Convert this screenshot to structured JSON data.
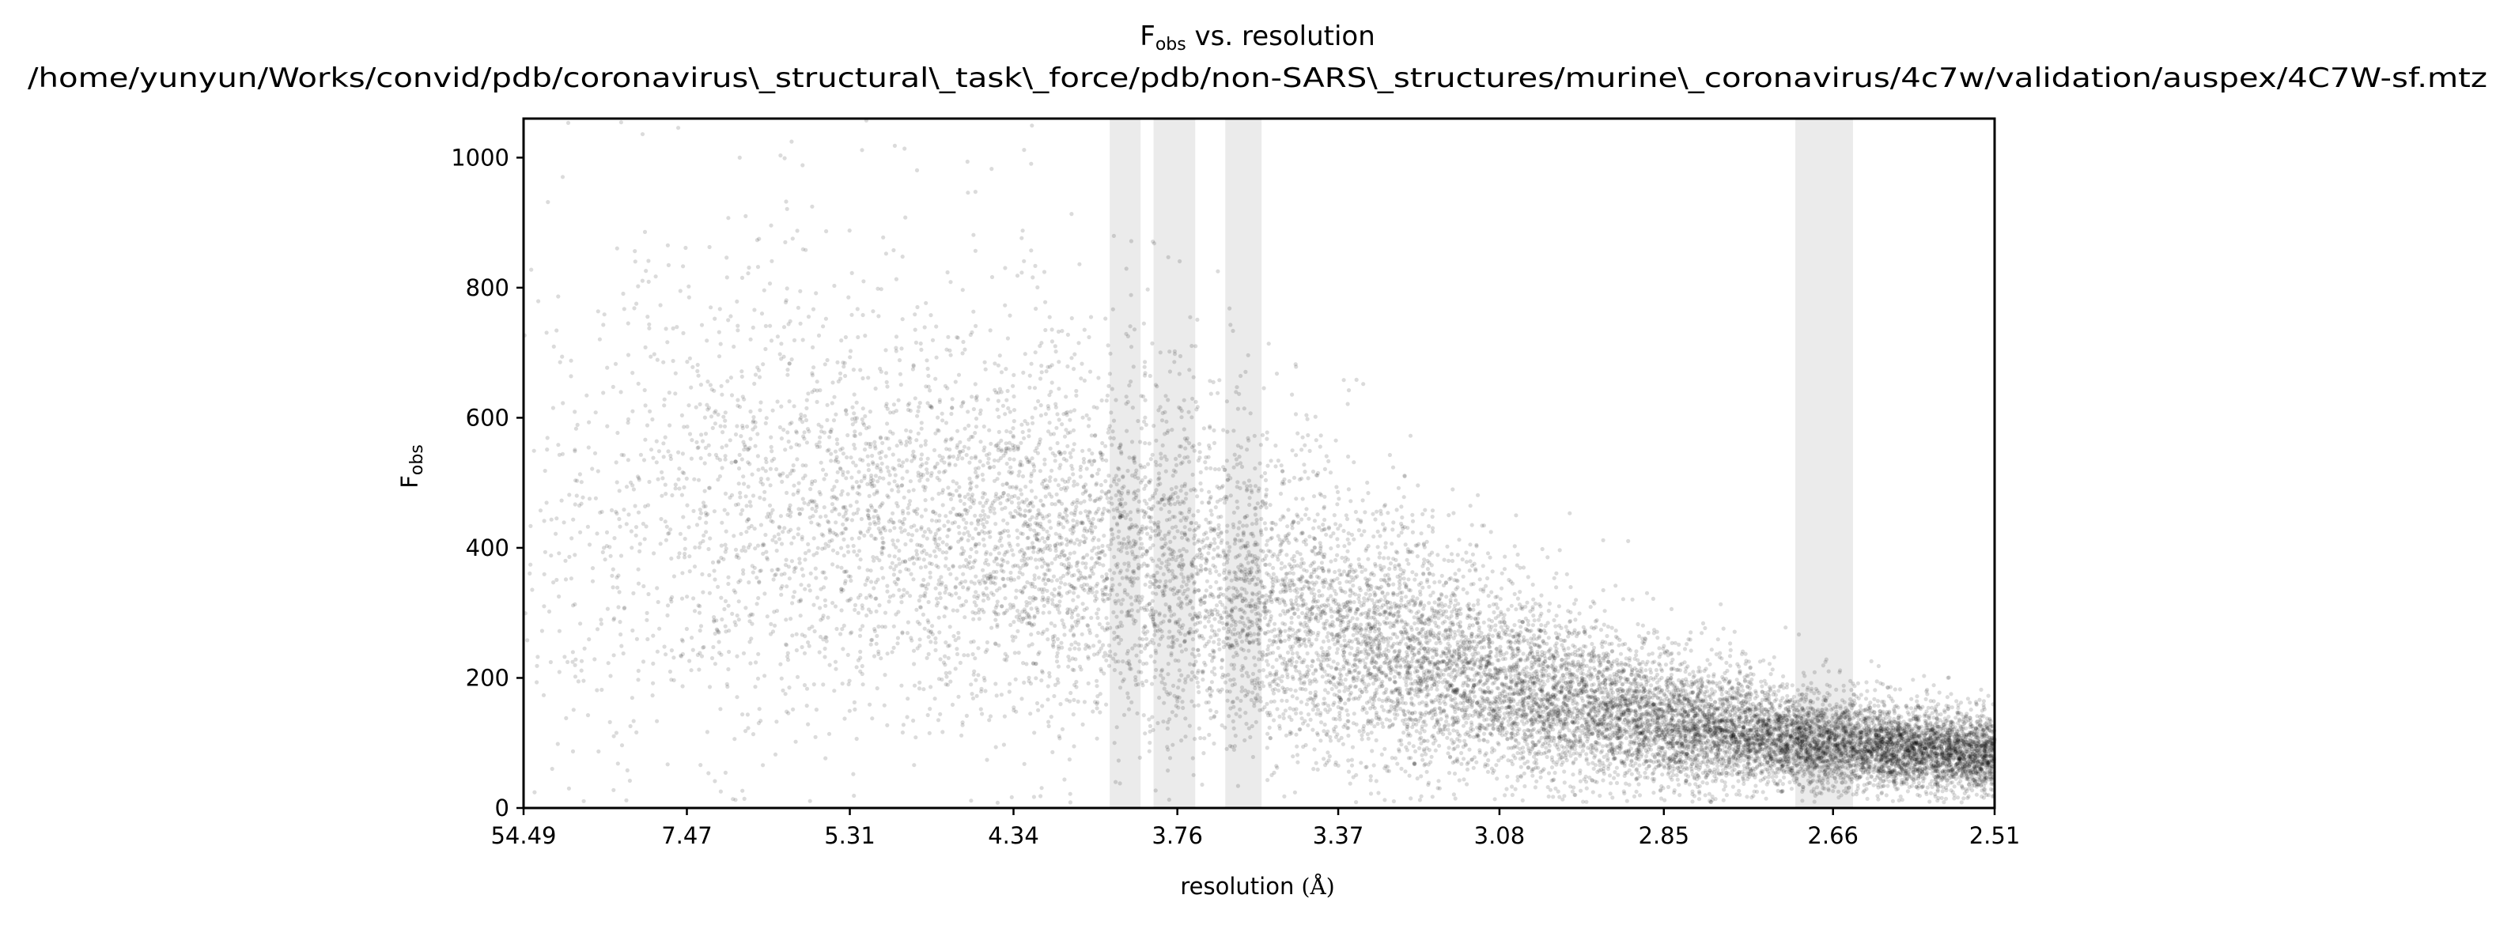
{
  "chart_data": {
    "type": "scatter",
    "title": {
      "main": "F",
      "main_sub": "obs",
      "main_rest": " vs. resolution",
      "subtitle": "/home/yunyun/Works/convid/pdb/coronavirus\\_structural\\_task\\_force/pdb/non-SARS\\_structures/murine\\_coronavirus/4c7w/validation/auspex/4C7W-sf.mtz"
    },
    "xlabel": {
      "text": "resolution ",
      "unit": "(Å)"
    },
    "ylabel": {
      "text": "F",
      "sub": "obs"
    },
    "x_scale": "1/d^2",
    "x_ticks": [
      {
        "label": "54.49",
        "d": 54.49
      },
      {
        "label": "7.47",
        "d": 7.47
      },
      {
        "label": "5.31",
        "d": 5.31
      },
      {
        "label": "4.34",
        "d": 4.34
      },
      {
        "label": "3.76",
        "d": 3.76
      },
      {
        "label": "3.37",
        "d": 3.37
      },
      {
        "label": "3.08",
        "d": 3.08
      },
      {
        "label": "2.85",
        "d": 2.85
      },
      {
        "label": "2.66",
        "d": 2.66
      },
      {
        "label": "2.51",
        "d": 2.51
      }
    ],
    "y_ticks": [
      0,
      200,
      400,
      600,
      800,
      1000
    ],
    "ylim": [
      0,
      1060
    ],
    "xlim_d": [
      54.49,
      2.51
    ],
    "grid": false,
    "legend": "none",
    "ice_ring_bands_d": [
      [
        3.97,
        3.87
      ],
      [
        3.83,
        3.71
      ],
      [
        3.63,
        3.54
      ],
      [
        2.699,
        2.64
      ]
    ],
    "point_color": "#000000",
    "band_color": "#ebebeb",
    "density_profile": [
      {
        "d": 54.49,
        "median_f": 370,
        "spread_f": 280,
        "density": 0.25
      },
      {
        "d": 7.47,
        "median_f": 450,
        "spread_f": 230,
        "density": 0.55
      },
      {
        "d": 5.31,
        "median_f": 440,
        "spread_f": 210,
        "density": 0.75
      },
      {
        "d": 4.34,
        "median_f": 410,
        "spread_f": 190,
        "density": 0.9
      },
      {
        "d": 3.76,
        "median_f": 350,
        "spread_f": 165,
        "density": 1.0
      },
      {
        "d": 3.37,
        "median_f": 260,
        "spread_f": 125,
        "density": 1.15
      },
      {
        "d": 3.08,
        "median_f": 185,
        "spread_f": 90,
        "density": 1.3
      },
      {
        "d": 2.85,
        "median_f": 125,
        "spread_f": 60,
        "density": 1.45
      },
      {
        "d": 2.66,
        "median_f": 95,
        "spread_f": 42,
        "density": 1.6
      },
      {
        "d": 2.51,
        "median_f": 80,
        "spread_f": 35,
        "density": 1.7
      }
    ]
  }
}
